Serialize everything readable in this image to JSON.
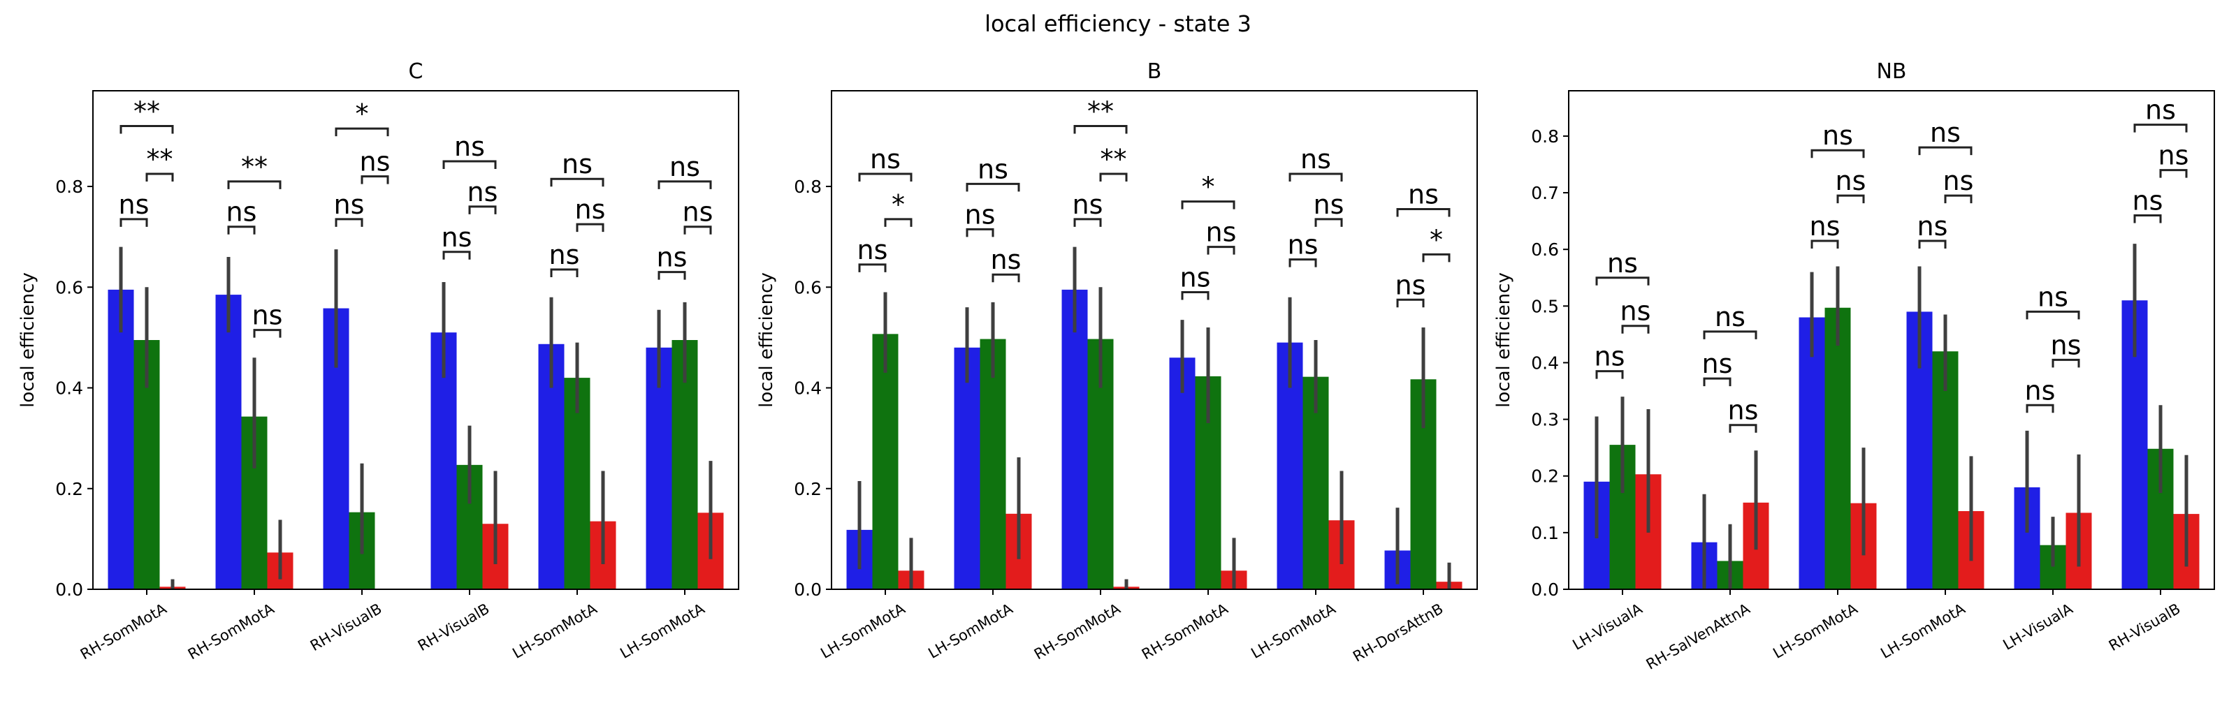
{
  "figure": {
    "suptitle": "local efficiency - state 3"
  },
  "colors": {
    "blue": "#1f1fe6",
    "green": "#0f730f",
    "red": "#e31c1c",
    "errorbar": "#3f3f3f",
    "bracket": "#222222"
  },
  "chart_data": [
    {
      "type": "bar",
      "title": "C",
      "xlabel": "",
      "ylabel": "local efficiency",
      "ylim": [
        0,
        0.99
      ],
      "yticks": [
        0.0,
        0.2,
        0.4,
        0.6,
        0.8
      ],
      "ytick_labels": [
        "0.0",
        "0.2",
        "0.4",
        "0.6",
        "0.8"
      ],
      "grid": false,
      "categories": [
        "RH-SomMotA",
        "RH-SomMotA",
        "RH-VisualB",
        "RH-VisualB",
        "LH-SomMotA",
        "LH-SomMotA"
      ],
      "series": [
        {
          "color": "blue",
          "values": [
            0.595,
            0.585,
            0.558,
            0.51,
            0.487,
            0.48
          ],
          "err_low": [
            0.51,
            0.51,
            0.44,
            0.42,
            0.4,
            0.4
          ],
          "err_high": [
            0.68,
            0.66,
            0.675,
            0.61,
            0.58,
            0.555
          ]
        },
        {
          "color": "green",
          "values": [
            0.495,
            0.343,
            0.153,
            0.247,
            0.42,
            0.495
          ],
          "err_low": [
            0.4,
            0.24,
            0.07,
            0.17,
            0.35,
            0.41
          ],
          "err_high": [
            0.6,
            0.46,
            0.25,
            0.325,
            0.49,
            0.57
          ]
        },
        {
          "color": "red",
          "values": [
            0.005,
            0.073,
            0.0,
            0.13,
            0.135,
            0.152
          ],
          "err_low": [
            0.0,
            0.02,
            0.0,
            0.05,
            0.05,
            0.06
          ],
          "err_high": [
            0.02,
            0.138,
            0.0,
            0.235,
            0.235,
            0.255
          ]
        }
      ],
      "annotations": [
        {
          "group": 0,
          "pairs": [
            [
              "ns",
              "0-1",
              0.735
            ],
            [
              "**",
              "1-2",
              0.825
            ],
            [
              "**",
              "0-2",
              0.92
            ]
          ]
        },
        {
          "group": 1,
          "pairs": [
            [
              "ns",
              "0-1",
              0.72
            ],
            [
              "ns",
              "1-2",
              0.515
            ],
            [
              "**",
              "0-2",
              0.81
            ]
          ]
        },
        {
          "group": 2,
          "pairs": [
            [
              "ns",
              "0-1",
              0.735
            ],
            [
              "ns",
              "1-2",
              0.82
            ],
            [
              "*",
              "0-2",
              0.915
            ]
          ]
        },
        {
          "group": 3,
          "pairs": [
            [
              "ns",
              "0-1",
              0.67
            ],
            [
              "ns",
              "1-2",
              0.76
            ],
            [
              "ns",
              "0-2",
              0.85
            ]
          ]
        },
        {
          "group": 4,
          "pairs": [
            [
              "ns",
              "0-1",
              0.635
            ],
            [
              "ns",
              "1-2",
              0.725
            ],
            [
              "ns",
              "0-2",
              0.815
            ]
          ]
        },
        {
          "group": 5,
          "pairs": [
            [
              "ns",
              "0-1",
              0.63
            ],
            [
              "ns",
              "1-2",
              0.72
            ],
            [
              "ns",
              "0-2",
              0.81
            ]
          ]
        }
      ]
    },
    {
      "type": "bar",
      "title": "B",
      "xlabel": "",
      "ylabel": "local efficiency",
      "ylim": [
        0,
        0.99
      ],
      "yticks": [
        0.0,
        0.2,
        0.4,
        0.6,
        0.8
      ],
      "ytick_labels": [
        "0.0",
        "0.2",
        "0.4",
        "0.6",
        "0.8"
      ],
      "grid": false,
      "categories": [
        "LH-SomMotA",
        "LH-SomMotA",
        "RH-SomMotA",
        "RH-SomMotA",
        "LH-SomMotA",
        "RH-DorsAttnB"
      ],
      "series": [
        {
          "color": "blue",
          "values": [
            0.118,
            0.48,
            0.595,
            0.46,
            0.49,
            0.077
          ],
          "err_low": [
            0.04,
            0.41,
            0.51,
            0.39,
            0.4,
            0.01
          ],
          "err_high": [
            0.215,
            0.56,
            0.68,
            0.535,
            0.58,
            0.162
          ]
        },
        {
          "color": "green",
          "values": [
            0.507,
            0.497,
            0.497,
            0.423,
            0.422,
            0.417
          ],
          "err_low": [
            0.43,
            0.42,
            0.4,
            0.33,
            0.35,
            0.32
          ],
          "err_high": [
            0.59,
            0.57,
            0.6,
            0.52,
            0.495,
            0.52
          ]
        },
        {
          "color": "red",
          "values": [
            0.037,
            0.15,
            0.005,
            0.037,
            0.137,
            0.015
          ],
          "err_low": [
            0.0,
            0.06,
            0.0,
            0.0,
            0.05,
            0.0
          ],
          "err_high": [
            0.102,
            0.262,
            0.02,
            0.102,
            0.235,
            0.053
          ]
        }
      ],
      "annotations": [
        {
          "group": 0,
          "pairs": [
            [
              "ns",
              "0-1",
              0.645
            ],
            [
              "*",
              "1-2",
              0.735
            ],
            [
              "ns",
              "0-2",
              0.825
            ]
          ]
        },
        {
          "group": 1,
          "pairs": [
            [
              "ns",
              "0-1",
              0.715
            ],
            [
              "ns",
              "1-2",
              0.625
            ],
            [
              "ns",
              "0-2",
              0.805
            ]
          ]
        },
        {
          "group": 2,
          "pairs": [
            [
              "ns",
              "0-1",
              0.735
            ],
            [
              "**",
              "1-2",
              0.825
            ],
            [
              "**",
              "0-2",
              0.92
            ]
          ]
        },
        {
          "group": 3,
          "pairs": [
            [
              "ns",
              "0-1",
              0.59
            ],
            [
              "ns",
              "1-2",
              0.68
            ],
            [
              "*",
              "0-2",
              0.77
            ]
          ]
        },
        {
          "group": 4,
          "pairs": [
            [
              "ns",
              "0-1",
              0.655
            ],
            [
              "ns",
              "1-2",
              0.735
            ],
            [
              "ns",
              "0-2",
              0.825
            ]
          ]
        },
        {
          "group": 5,
          "pairs": [
            [
              "ns",
              "0-1",
              0.575
            ],
            [
              "*",
              "1-2",
              0.665
            ],
            [
              "ns",
              "0-2",
              0.755
            ]
          ]
        }
      ]
    },
    {
      "type": "bar",
      "title": "NB",
      "xlabel": "",
      "ylabel": "local efficiency",
      "ylim": [
        0,
        0.88
      ],
      "yticks": [
        0.0,
        0.1,
        0.2,
        0.3,
        0.4,
        0.5,
        0.6,
        0.7,
        0.8
      ],
      "ytick_labels": [
        "0.0",
        "0.1",
        "0.2",
        "0.3",
        "0.4",
        "0.5",
        "0.6",
        "0.7",
        "0.8"
      ],
      "grid": false,
      "categories": [
        "LH-VisualA",
        "RH-SalVenAttnA",
        "LH-SomMotA",
        "LH-SomMotA",
        "LH-VisualA",
        "RH-VisualB"
      ],
      "series": [
        {
          "color": "blue",
          "values": [
            0.19,
            0.083,
            0.48,
            0.49,
            0.18,
            0.51
          ],
          "err_low": [
            0.09,
            0.0,
            0.41,
            0.39,
            0.1,
            0.41
          ],
          "err_high": [
            0.305,
            0.168,
            0.56,
            0.57,
            0.28,
            0.61
          ]
        },
        {
          "color": "green",
          "values": [
            0.255,
            0.05,
            0.497,
            0.42,
            0.078,
            0.248
          ],
          "err_low": [
            0.17,
            0.0,
            0.43,
            0.35,
            0.04,
            0.17
          ],
          "err_high": [
            0.34,
            0.115,
            0.57,
            0.485,
            0.128,
            0.325
          ]
        },
        {
          "color": "red",
          "values": [
            0.203,
            0.153,
            0.152,
            0.138,
            0.135,
            0.133
          ],
          "err_low": [
            0.1,
            0.07,
            0.06,
            0.05,
            0.04,
            0.04
          ],
          "err_high": [
            0.318,
            0.245,
            0.25,
            0.235,
            0.238,
            0.237
          ]
        }
      ],
      "annotations": [
        {
          "group": 0,
          "pairs": [
            [
              "ns",
              "0-1",
              0.385
            ],
            [
              "ns",
              "1-2",
              0.465
            ],
            [
              "ns",
              "0-2",
              0.55
            ]
          ]
        },
        {
          "group": 1,
          "pairs": [
            [
              "ns",
              "0-1",
              0.372
            ],
            [
              "ns",
              "1-2",
              0.29
            ],
            [
              "ns",
              "0-2",
              0.455
            ]
          ]
        },
        {
          "group": 2,
          "pairs": [
            [
              "ns",
              "0-1",
              0.615
            ],
            [
              "ns",
              "1-2",
              0.695
            ],
            [
              "ns",
              "0-2",
              0.775
            ]
          ]
        },
        {
          "group": 3,
          "pairs": [
            [
              "ns",
              "0-1",
              0.615
            ],
            [
              "ns",
              "1-2",
              0.695
            ],
            [
              "ns",
              "0-2",
              0.78
            ]
          ]
        },
        {
          "group": 4,
          "pairs": [
            [
              "ns",
              "0-1",
              0.325
            ],
            [
              "ns",
              "1-2",
              0.405
            ],
            [
              "ns",
              "0-2",
              0.49
            ]
          ]
        },
        {
          "group": 5,
          "pairs": [
            [
              "ns",
              "0-1",
              0.66
            ],
            [
              "ns",
              "1-2",
              0.74
            ],
            [
              "ns",
              "0-2",
              0.82
            ]
          ]
        }
      ]
    }
  ]
}
